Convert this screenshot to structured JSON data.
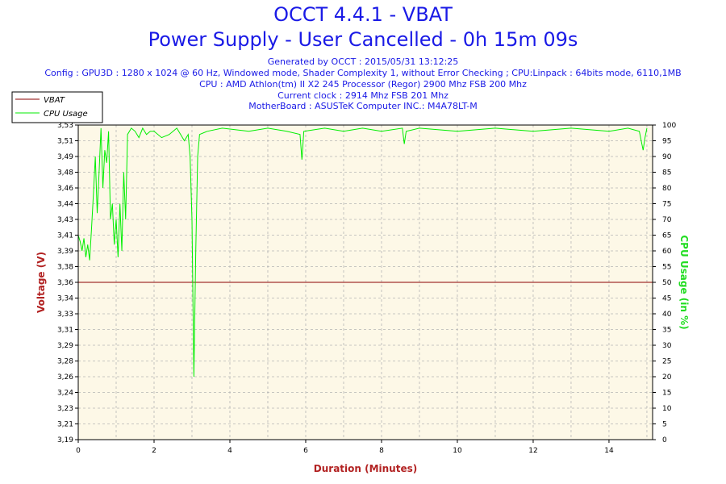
{
  "header": {
    "title": "OCCT 4.4.1 - VBAT",
    "subtitle": "Power Supply - User Cancelled - 0h 15m 09s",
    "generated": "Generated by OCCT : 2015/05/31 13:12:25",
    "config": "Config : GPU3D : 1280 x 1024 @ 60 Hz, Windowed mode, Shader Complexity 1, without Error Checking ; CPU:Linpack : 64bits mode, 6110,1MB",
    "cpu": "CPU : AMD Athlon(tm) II X2 245 Processor (Regor) 2900 Mhz FSB 200 Mhz",
    "clock": "Current clock : 2914 Mhz FSB 201 Mhz",
    "motherboard": "MotherBoard : ASUSTeK Computer INC.: M4A78LT-M"
  },
  "colors": {
    "vbat": "#8b0000",
    "cpu": "#00ee00",
    "plot_bg": "#fdf8e7",
    "grid": "#b5b5b5",
    "ylabel": "#b22222",
    "y2label": "#22dd22",
    "xlabel": "#b22222"
  },
  "chart_data": {
    "type": "line",
    "xlabel": "Duration (Minutes)",
    "ylabel": "Voltage (V)",
    "y2label": "CPU Usage (in %)",
    "xlim": [
      0,
      15.15
    ],
    "ylim": [
      3.19,
      3.53
    ],
    "y2lim": [
      0,
      100
    ],
    "x_ticks": [
      "0",
      "2",
      "4",
      "6",
      "8",
      "10",
      "12",
      "14"
    ],
    "y_ticks": [
      "3,19",
      "3,21",
      "3,23",
      "3,24",
      "3,26",
      "3,28",
      "3,29",
      "3,31",
      "3,33",
      "3,34",
      "3,36",
      "3,38",
      "3,39",
      "3,41",
      "3,43",
      "3,44",
      "3,46",
      "3,48",
      "3,49",
      "3,51",
      "3,53"
    ],
    "y2_ticks": [
      "0",
      "5",
      "10",
      "15",
      "20",
      "25",
      "30",
      "35",
      "40",
      "45",
      "50",
      "55",
      "60",
      "65",
      "70",
      "75",
      "80",
      "85",
      "90",
      "95",
      "100"
    ],
    "grid": true,
    "legend_position": "top-left",
    "series": [
      {
        "name": "VBAT",
        "axis": "left",
        "x": [
          0,
          15.15
        ],
        "y": [
          3.36,
          3.36
        ]
      },
      {
        "name": "CPU Usage",
        "axis": "right",
        "x": [
          0,
          0.05,
          0.1,
          0.15,
          0.2,
          0.25,
          0.3,
          0.35,
          0.4,
          0.45,
          0.5,
          0.55,
          0.6,
          0.65,
          0.7,
          0.75,
          0.8,
          0.85,
          0.9,
          0.95,
          1.0,
          1.05,
          1.1,
          1.15,
          1.2,
          1.25,
          1.3,
          1.4,
          1.5,
          1.6,
          1.7,
          1.8,
          1.9,
          2.0,
          2.2,
          2.4,
          2.6,
          2.8,
          2.9,
          2.95,
          3.0,
          3.05,
          3.1,
          3.15,
          3.2,
          3.4,
          3.8,
          4.5,
          5.0,
          5.5,
          5.85,
          5.9,
          5.95,
          6.5,
          7.0,
          7.5,
          8.0,
          8.55,
          8.6,
          8.65,
          9.0,
          10.0,
          11.0,
          12.0,
          13.0,
          14.0,
          14.5,
          14.8,
          14.9,
          14.95,
          15.0
        ],
        "y": [
          65,
          63,
          60,
          64,
          58,
          62,
          57,
          67,
          78,
          90,
          72,
          85,
          99,
          80,
          92,
          88,
          98,
          70,
          75,
          62,
          70,
          58,
          75,
          60,
          85,
          70,
          97,
          99,
          98,
          96,
          99,
          97,
          98,
          98,
          96,
          97,
          99,
          95,
          97,
          90,
          70,
          20,
          60,
          90,
          97,
          98,
          99,
          98,
          99,
          98,
          97,
          89,
          98,
          99,
          98,
          99,
          98,
          99,
          94,
          98,
          99,
          98,
          99,
          98,
          99,
          98,
          99,
          98,
          92,
          96,
          99
        ]
      }
    ]
  }
}
